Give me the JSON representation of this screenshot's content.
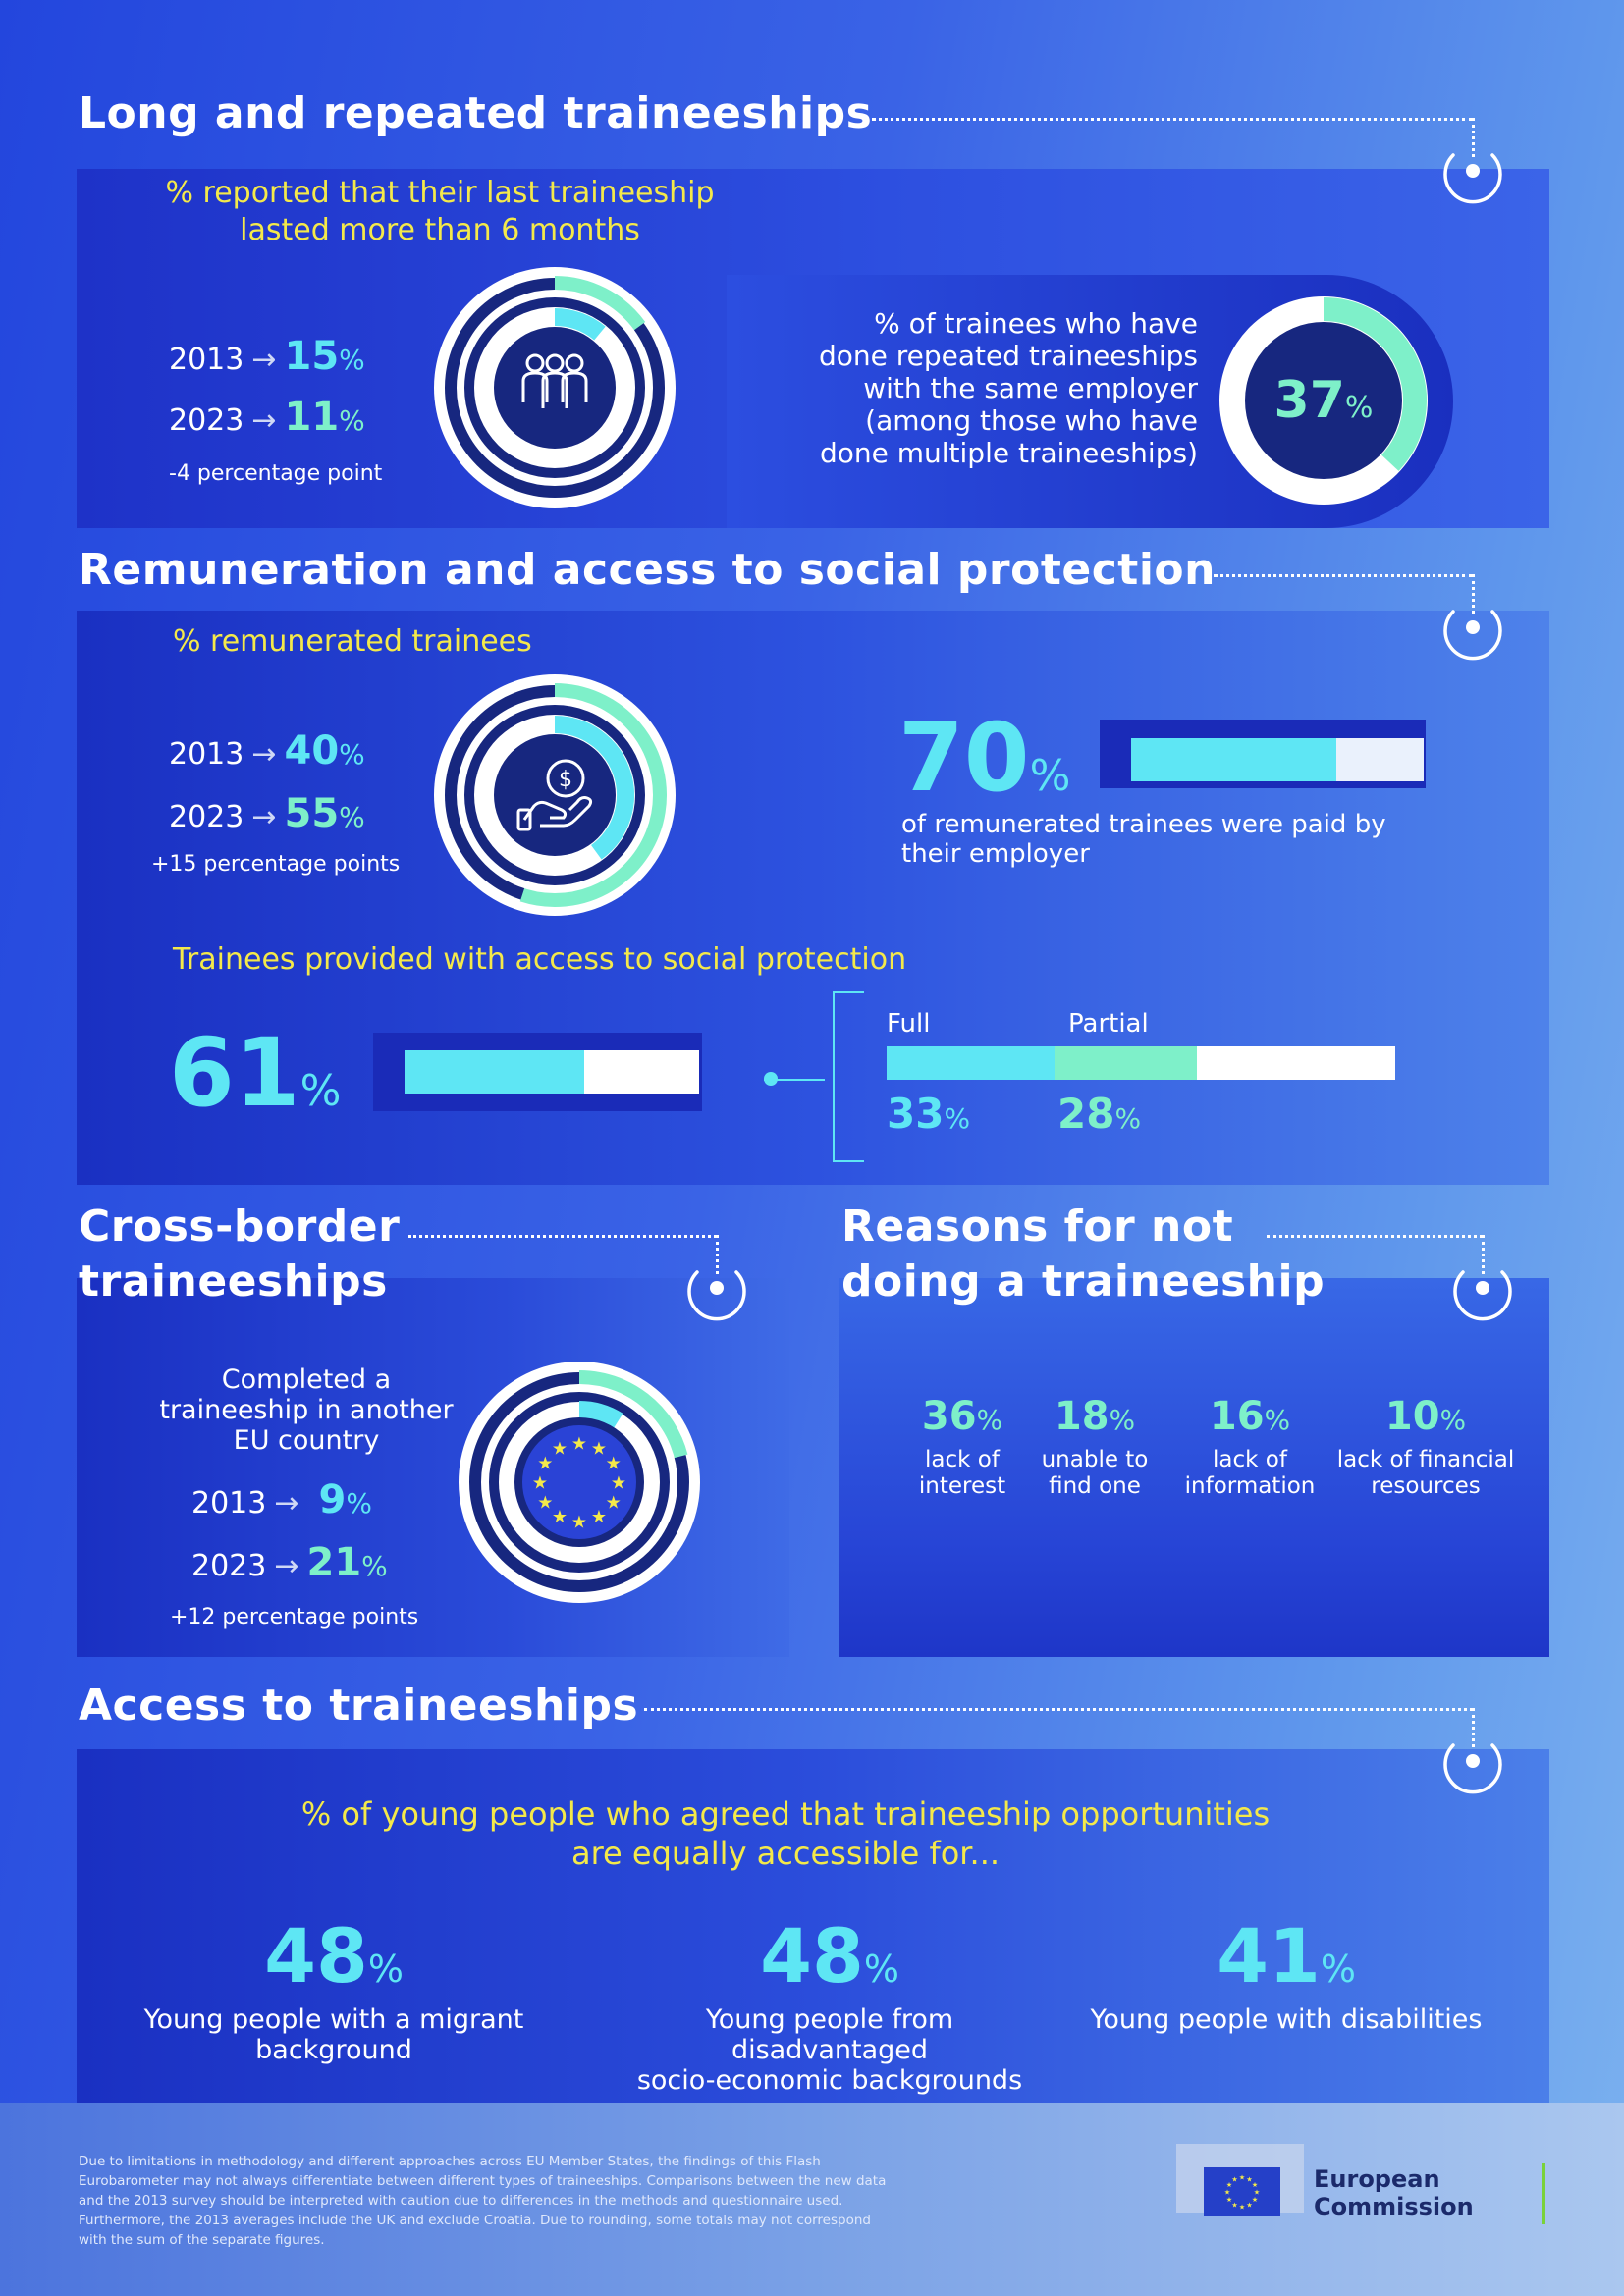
{
  "sections": {
    "long": {
      "title": "Long and repeated traineeships",
      "subtitle_line1": "% reported that their last traineeship",
      "subtitle_line2": "lasted more than 6 months",
      "y2013": "2013",
      "y2023": "2023",
      "val2013": "15",
      "val2023": "11",
      "pct": "%",
      "change": "-4 percentage point",
      "icon": "people-group-icon",
      "donut_value": 0.11,
      "repeat_line1": "% of trainees who have",
      "repeat_line2": "done repeated traineeships",
      "repeat_line3": "with the same employer",
      "repeat_line4": "(among those who have",
      "repeat_line5": "done multiple traineeships)",
      "repeat_value": "37",
      "repeat_fraction": 0.37
    },
    "remuneration": {
      "title": "Remuneration and access to social protection",
      "subtitle": "% remunerated trainees",
      "y2013": "2013",
      "y2023": "2023",
      "val2013": "40",
      "val2023": "55",
      "pct": "%",
      "change": "+15 percentage points",
      "icon": "hand-money-icon",
      "employer_value": "70",
      "employer_fraction": 0.7,
      "employer_line1": "of remunerated trainees were paid by",
      "employer_line2": "their employer",
      "social_subtitle": "Trainees provided with access to social protection",
      "social_value": "61",
      "social_fraction": 0.61,
      "full_label": "Full",
      "partial_label": "Partial",
      "full_value": "33",
      "partial_value": "28",
      "full_fraction": 0.33,
      "partial_fraction": 0.28
    },
    "crossborder": {
      "title_line1": "Cross-border",
      "title_line2": "traineeships",
      "desc_line1": "Completed a",
      "desc_line2": "traineeship in another",
      "desc_line3": "EU country",
      "y2013": "2013",
      "y2023": "2023",
      "val2013": "9",
      "val2023": "21",
      "pct": "%",
      "change": "+12 percentage points",
      "icon": "eu-flag-icon",
      "donut_value": 0.21
    },
    "reasons": {
      "title_line1": "Reasons for not",
      "title_line2": "doing a traineeship",
      "items": [
        {
          "value": "36",
          "line1": "lack of",
          "line2": "interest"
        },
        {
          "value": "18",
          "line1": "unable to",
          "line2": "find one"
        },
        {
          "value": "16",
          "line1": "lack of",
          "line2": "information"
        },
        {
          "value": "10",
          "line1": "lack of financial",
          "line2": "resources"
        }
      ]
    },
    "access": {
      "title": "Access to traineeships",
      "subtitle_line1": "% of young people who agreed that traineeship opportunities",
      "subtitle_line2": "are equally accessible for...",
      "items": [
        {
          "value": "48",
          "line1": "Young people with a migrant",
          "line2": "background"
        },
        {
          "value": "48",
          "line1": "Young people from disadvantaged",
          "line2": "socio-economic backgrounds"
        },
        {
          "value": "41",
          "line1": "Young people with disabilities",
          "line2": ""
        }
      ]
    }
  },
  "footer": {
    "line1": "Due to limitations in methodology and different approaches across EU Member States, the findings of this Flash",
    "line2": "Eurobarometer may not always differentiate between different types of traineeships. Comparisons between the new data",
    "line3": "and the 2013 survey should be interpreted with caution due to differences in the methods and questionnaire used.",
    "line4": "Furthermore, the 2013 averages include the UK and exclude Croatia. Due to rounding, some totals may not correspond",
    "line5": "with the sum of the separate figures.",
    "logo_line1": "European",
    "logo_line2": "Commission"
  },
  "colors": {
    "yellow": "#f4e94a",
    "cyan": "#5ee6f4",
    "mint": "#7ef0c9",
    "navy": "#17277f"
  }
}
